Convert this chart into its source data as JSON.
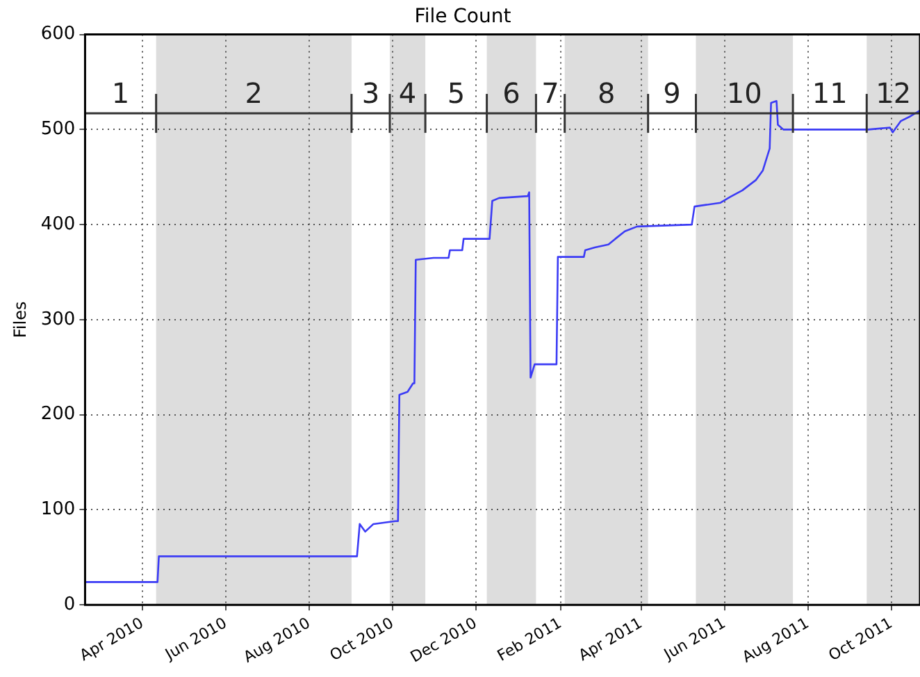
{
  "chart_data": {
    "type": "line",
    "title": "File Count",
    "ylabel": "Files",
    "x": [
      "2010-02-18",
      "2010-04-12",
      "2010-04-13",
      "2010-09-05",
      "2010-09-07",
      "2010-09-11",
      "2010-09-17",
      "2010-10-03",
      "2010-10-05",
      "2010-10-06",
      "2010-10-12",
      "2010-10-16",
      "2010-10-17",
      "2010-10-18",
      "2010-10-31",
      "2010-11-11",
      "2010-11-12",
      "2010-11-21",
      "2010-11-22",
      "2010-12-11",
      "2010-12-13",
      "2010-12-18",
      "2011-01-08",
      "2011-01-09",
      "2011-01-10",
      "2011-01-13",
      "2011-01-29",
      "2011-01-30",
      "2011-02-18",
      "2011-02-19",
      "2011-02-26",
      "2011-03-08",
      "2011-03-13",
      "2011-03-20",
      "2011-03-29",
      "2011-05-08",
      "2011-05-10",
      "2011-05-29",
      "2011-06-05",
      "2011-06-14",
      "2011-06-24",
      "2011-06-29",
      "2011-07-02",
      "2011-07-04",
      "2011-07-05",
      "2011-07-09",
      "2011-07-10",
      "2011-07-14",
      "2011-09-14",
      "2011-09-30",
      "2011-10-02",
      "2011-10-08",
      "2011-10-15",
      "2011-10-22"
    ],
    "series": [
      {
        "color": "#3b3bf5",
        "values": [
          24,
          24,
          51,
          51,
          85,
          77,
          85,
          88,
          88,
          221,
          224,
          233,
          233,
          363,
          365,
          365,
          373,
          373,
          385,
          385,
          425,
          428,
          430,
          434,
          239,
          253,
          253,
          366,
          366,
          373,
          376,
          379,
          385,
          393,
          398,
          400,
          419,
          423,
          429,
          436,
          447,
          457,
          471,
          480,
          528,
          530,
          505,
          500,
          500,
          502,
          497,
          509,
          514,
          520
        ]
      }
    ],
    "xlim": [
      "2010-02-18",
      "2011-10-22"
    ],
    "xticks": [
      {
        "value": "2010-04-01",
        "label": "Apr 2010"
      },
      {
        "value": "2010-06-01",
        "label": "Jun 2010"
      },
      {
        "value": "2010-08-01",
        "label": "Aug 2010"
      },
      {
        "value": "2010-10-01",
        "label": "Oct 2010"
      },
      {
        "value": "2010-12-01",
        "label": "Dec 2010"
      },
      {
        "value": "2011-02-01",
        "label": "Feb 2011"
      },
      {
        "value": "2011-04-01",
        "label": "Apr 2011"
      },
      {
        "value": "2011-06-01",
        "label": "Jun 2011"
      },
      {
        "value": "2011-08-01",
        "label": "Aug 2011"
      },
      {
        "value": "2011-10-01",
        "label": "Oct 2011"
      }
    ],
    "ylim": [
      0,
      600
    ],
    "yticks": [
      0,
      100,
      200,
      300,
      400,
      500,
      600
    ],
    "grid": true,
    "legend": false,
    "marker": "none",
    "line_style": "solid",
    "ref_lines": [
      {
        "axis": "y",
        "value": 517,
        "color": "#333333"
      }
    ],
    "annotations": [
      "1",
      "3",
      "5",
      "7",
      "9",
      "11"
    ],
    "bands": [
      {
        "axis": "x",
        "from": "2010-04-11",
        "to": "2010-09-01",
        "label": "2",
        "color": "#dddddd"
      },
      {
        "axis": "x",
        "from": "2010-09-29",
        "to": "2010-10-25",
        "label": "4",
        "color": "#dddddd"
      },
      {
        "axis": "x",
        "from": "2010-12-09",
        "to": "2011-01-14",
        "label": "6",
        "color": "#dddddd"
      },
      {
        "axis": "x",
        "from": "2011-02-04",
        "to": "2011-04-06",
        "label": "8",
        "color": "#dddddd"
      },
      {
        "axis": "x",
        "from": "2011-05-11",
        "to": "2011-07-21",
        "label": "10",
        "color": "#dddddd"
      },
      {
        "axis": "x",
        "from": "2011-09-13",
        "to": "2011-10-22",
        "label": "12",
        "color": "#dddddd"
      }
    ]
  }
}
